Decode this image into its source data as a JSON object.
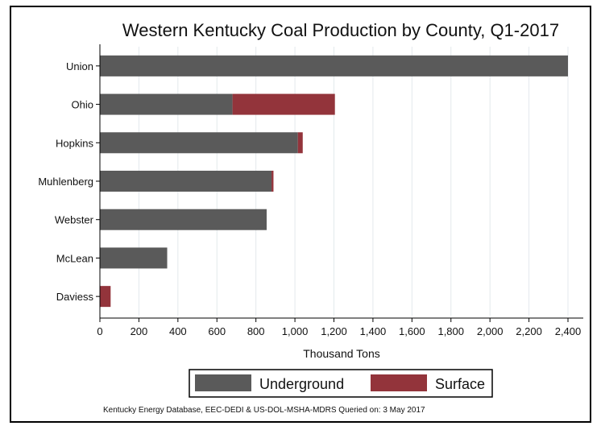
{
  "chart_data": {
    "type": "bar",
    "orientation": "horizontal",
    "stacked": true,
    "title": "Western Kentucky Coal Production by County, Q1-2017",
    "xlabel": "Thousand Tons",
    "ylabel": "",
    "categories": [
      "Union",
      "Ohio",
      "Hopkins",
      "Muhlenberg",
      "Webster",
      "McLean",
      "Daviess"
    ],
    "series": [
      {
        "name": "Underground",
        "color": "#5a5a5a",
        "values": [
          2400,
          680,
          1015,
          880,
          855,
          345,
          0
        ]
      },
      {
        "name": "Surface",
        "color": "#93343b",
        "values": [
          0,
          525,
          25,
          10,
          0,
          0,
          55
        ]
      }
    ],
    "xlim": [
      0,
      2400
    ],
    "xticks": [
      0,
      200,
      400,
      600,
      800,
      1000,
      1200,
      1400,
      1600,
      1800,
      2000,
      2200,
      2400
    ],
    "xtick_labels": [
      "0",
      "200",
      "400",
      "600",
      "800",
      "1,000",
      "1,200",
      "1,400",
      "1,600",
      "1,800",
      "2,000",
      "2,200",
      "2,400"
    ],
    "grid": true,
    "legend_position": "bottom"
  },
  "footnote": "Kentucky Energy Database, EEC-DEDI & US-DOL-MSHA-MDRS Queried on: 3 May 2017"
}
